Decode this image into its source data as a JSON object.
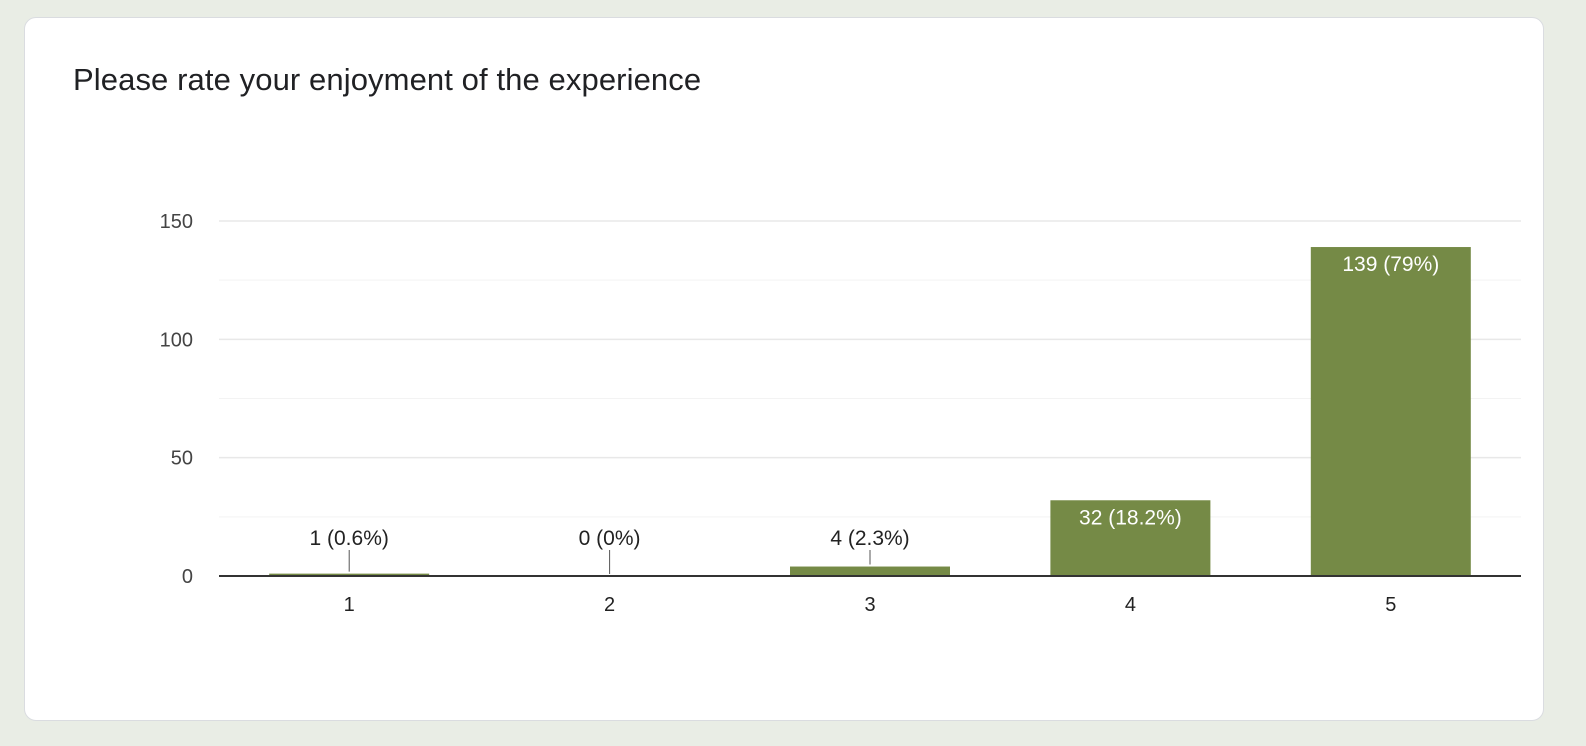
{
  "card": {
    "title": "Please rate your enjoyment of the experience"
  },
  "colors": {
    "bar": "#758a46",
    "grid": "#e8e8e8",
    "minor_grid": "#f3f3f3",
    "axis": "#333333",
    "label": "#222222",
    "label_on_bar": "#ffffff",
    "page_bg": "#e9ede5",
    "card_bg": "#ffffff"
  },
  "chart_data": {
    "type": "bar",
    "title": "Please rate your enjoyment of the experience",
    "categories": [
      "1",
      "2",
      "3",
      "4",
      "5"
    ],
    "values": [
      1,
      0,
      4,
      32,
      139
    ],
    "data_labels": [
      "1 (0.6%)",
      "0 (0%)",
      "4 (2.3%)",
      "32 (18.2%)",
      "139 (79%)"
    ],
    "ylim": [
      0,
      150
    ],
    "yticks": [
      0,
      50,
      100,
      150
    ],
    "y_minor_grid": [
      25,
      75,
      125
    ],
    "grid": true,
    "legend": "none"
  }
}
